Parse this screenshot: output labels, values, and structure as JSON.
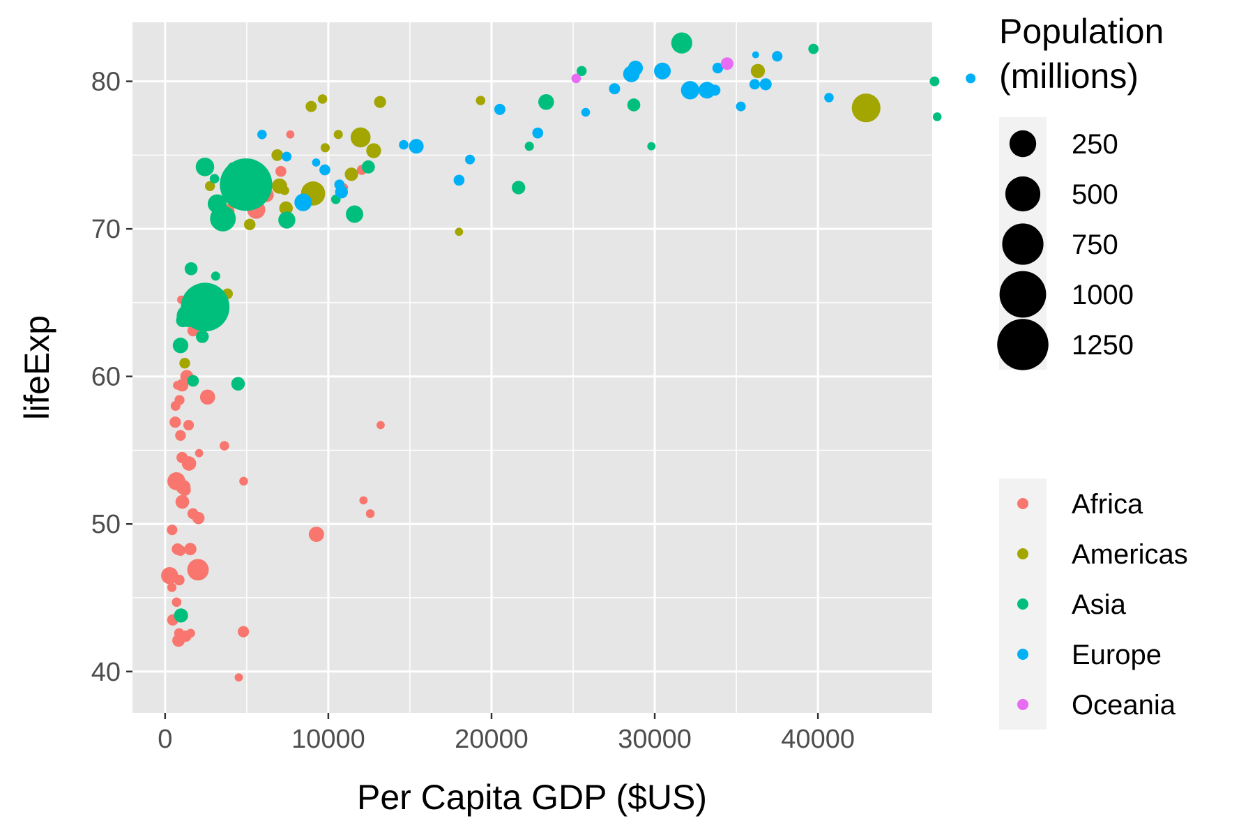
{
  "chart_data": {
    "type": "scatter",
    "xlabel": "Per Capita GDP ($US)",
    "ylabel": "lifeExp",
    "xlim": [
      -2000,
      47000
    ],
    "ylim": [
      37.2,
      84.0
    ],
    "x_ticks": [
      0,
      10000,
      20000,
      30000,
      40000
    ],
    "x_tick_labels": [
      "0",
      "10000",
      "20000",
      "30000",
      "40000"
    ],
    "y_ticks": [
      40,
      50,
      60,
      70,
      80
    ],
    "y_tick_labels": [
      "40",
      "50",
      "60",
      "70",
      "80"
    ],
    "grid": true,
    "panel_background": "#e6e6e6",
    "size_legend": {
      "title_lines": [
        "Population",
        "(millions)"
      ],
      "entries": [
        {
          "label": "250",
          "value": 250
        },
        {
          "label": "500",
          "value": 500
        },
        {
          "label": "750",
          "value": 750
        },
        {
          "label": "1000",
          "value": 1000
        },
        {
          "label": "1250",
          "value": 1250
        }
      ]
    },
    "color_legend": {
      "placement": "right",
      "entries": [
        {
          "label": "Africa",
          "color": "#F8766D"
        },
        {
          "label": "Americas",
          "color": "#A3A500"
        },
        {
          "label": "Asia",
          "color": "#00BF7D"
        },
        {
          "label": "Europe",
          "color": "#00B0F6"
        },
        {
          "label": "Oceania",
          "color": "#E76BF3"
        }
      ]
    },
    "series": [
      {
        "name": "Africa",
        "color": "#F8766D",
        "points": [
          {
            "x": 6223,
            "y": 72.3,
            "pop": 33
          },
          {
            "x": 4797,
            "y": 42.7,
            "pop": 12
          },
          {
            "x": 1441,
            "y": 56.7,
            "pop": 8
          },
          {
            "x": 12570,
            "y": 50.7,
            "pop": 2
          },
          {
            "x": 1217,
            "y": 52.3,
            "pop": 14
          },
          {
            "x": 430,
            "y": 49.6,
            "pop": 8
          },
          {
            "x": 2042,
            "y": 50.4,
            "pop": 18
          },
          {
            "x": 706,
            "y": 44.7,
            "pop": 4
          },
          {
            "x": 1704,
            "y": 50.7,
            "pop": 10
          },
          {
            "x": 986,
            "y": 65.2,
            "pop": 1
          },
          {
            "x": 278,
            "y": 46.5,
            "pop": 65
          },
          {
            "x": 3633,
            "y": 55.3,
            "pop": 4
          },
          {
            "x": 1545,
            "y": 48.3,
            "pop": 18
          },
          {
            "x": 2082,
            "y": 54.8,
            "pop": 1
          },
          {
            "x": 5581,
            "y": 71.3,
            "pop": 80
          },
          {
            "x": 12154,
            "y": 51.6,
            "pop": 1
          },
          {
            "x": 641,
            "y": 58.0,
            "pop": 5
          },
          {
            "x": 690,
            "y": 52.9,
            "pop": 77
          },
          {
            "x": 13206,
            "y": 56.7,
            "pop": 1
          },
          {
            "x": 752,
            "y": 59.4,
            "pop": 2
          },
          {
            "x": 1328,
            "y": 60.0,
            "pop": 23
          },
          {
            "x": 943,
            "y": 56.0,
            "pop": 9
          },
          {
            "x": 580,
            "y": 46.4,
            "pop": 1
          },
          {
            "x": 1463,
            "y": 54.1,
            "pop": 35
          },
          {
            "x": 1569,
            "y": 42.6,
            "pop": 2
          },
          {
            "x": 415,
            "y": 45.7,
            "pop": 3
          },
          {
            "x": 12057,
            "y": 74.0,
            "pop": 6
          },
          {
            "x": 1045,
            "y": 59.4,
            "pop": 19
          },
          {
            "x": 759,
            "y": 48.3,
            "pop": 13
          },
          {
            "x": 1042,
            "y": 54.5,
            "pop": 12
          },
          {
            "x": 1803,
            "y": 64.2,
            "pop": 3
          },
          {
            "x": 10957,
            "y": 72.8,
            "pop": 1
          },
          {
            "x": 3820,
            "y": 71.2,
            "pop": 33
          },
          {
            "x": 824,
            "y": 42.1,
            "pop": 20
          },
          {
            "x": 4811,
            "y": 52.9,
            "pop": 2
          },
          {
            "x": 620,
            "y": 56.9,
            "pop": 12
          },
          {
            "x": 2014,
            "y": 46.9,
            "pop": 135
          },
          {
            "x": 7670,
            "y": 76.4,
            "pop": 1
          },
          {
            "x": 863,
            "y": 46.2,
            "pop": 9
          },
          {
            "x": 1598,
            "y": 65.5,
            "pop": 0
          },
          {
            "x": 1712,
            "y": 63.1,
            "pop": 12
          },
          {
            "x": 862,
            "y": 42.6,
            "pop": 6
          },
          {
            "x": 926,
            "y": 48.2,
            "pop": 9
          },
          {
            "x": 9270,
            "y": 49.3,
            "pop": 44
          },
          {
            "x": 2602,
            "y": 58.6,
            "pop": 42
          },
          {
            "x": 4513,
            "y": 39.6,
            "pop": 1
          },
          {
            "x": 1107,
            "y": 52.5,
            "pop": 38
          },
          {
            "x": 883,
            "y": 58.4,
            "pop": 6
          },
          {
            "x": 7093,
            "y": 73.9,
            "pop": 10
          },
          {
            "x": 1056,
            "y": 51.5,
            "pop": 29
          },
          {
            "x": 1271,
            "y": 42.4,
            "pop": 12
          },
          {
            "x": 470,
            "y": 43.5,
            "pop": 12
          }
        ]
      },
      {
        "name": "Americas",
        "color": "#A3A500",
        "points": [
          {
            "x": 12779,
            "y": 75.3,
            "pop": 40
          },
          {
            "x": 3822,
            "y": 65.6,
            "pop": 9
          },
          {
            "x": 9066,
            "y": 72.4,
            "pop": 190
          },
          {
            "x": 36319,
            "y": 80.7,
            "pop": 33
          },
          {
            "x": 13172,
            "y": 78.6,
            "pop": 16
          },
          {
            "x": 7007,
            "y": 72.9,
            "pop": 44
          },
          {
            "x": 9645,
            "y": 78.8,
            "pop": 4
          },
          {
            "x": 8948,
            "y": 78.3,
            "pop": 11
          },
          {
            "x": 6025,
            "y": 72.2,
            "pop": 9
          },
          {
            "x": 6873,
            "y": 75.0,
            "pop": 14
          },
          {
            "x": 5728,
            "y": 71.9,
            "pop": 7
          },
          {
            "x": 5186,
            "y": 70.3,
            "pop": 13
          },
          {
            "x": 1202,
            "y": 60.9,
            "pop": 9
          },
          {
            "x": 3548,
            "y": 70.2,
            "pop": 7
          },
          {
            "x": 7321,
            "y": 72.6,
            "pop": 3
          },
          {
            "x": 11978,
            "y": 76.2,
            "pop": 108
          },
          {
            "x": 2749,
            "y": 72.9,
            "pop": 6
          },
          {
            "x": 9809,
            "y": 75.5,
            "pop": 3
          },
          {
            "x": 4173,
            "y": 71.8,
            "pop": 7
          },
          {
            "x": 7409,
            "y": 71.4,
            "pop": 28
          },
          {
            "x": 19329,
            "y": 78.7,
            "pop": 4
          },
          {
            "x": 18009,
            "y": 69.8,
            "pop": 1
          },
          {
            "x": 42952,
            "y": 78.2,
            "pop": 301
          },
          {
            "x": 10611,
            "y": 76.4,
            "pop": 3
          },
          {
            "x": 11416,
            "y": 73.7,
            "pop": 26
          }
        ]
      },
      {
        "name": "Asia",
        "color": "#00BF7D",
        "points": [
          {
            "x": 975,
            "y": 43.8,
            "pop": 32
          },
          {
            "x": 29796,
            "y": 75.6,
            "pop": 1
          },
          {
            "x": 1391,
            "y": 64.1,
            "pop": 150
          },
          {
            "x": 1714,
            "y": 59.7,
            "pop": 14
          },
          {
            "x": 4959,
            "y": 73.0,
            "pop": 1319
          },
          {
            "x": 39725,
            "y": 82.2,
            "pop": 7
          },
          {
            "x": 2452,
            "y": 64.7,
            "pop": 1110
          },
          {
            "x": 3541,
            "y": 70.7,
            "pop": 224
          },
          {
            "x": 11606,
            "y": 71.0,
            "pop": 69
          },
          {
            "x": 4471,
            "y": 59.5,
            "pop": 28
          },
          {
            "x": 25523,
            "y": 80.7,
            "pop": 6
          },
          {
            "x": 31656,
            "y": 82.6,
            "pop": 127
          },
          {
            "x": 4519,
            "y": 72.5,
            "pop": 6
          },
          {
            "x": 1593,
            "y": 67.3,
            "pop": 23
          },
          {
            "x": 23348,
            "y": 78.6,
            "pop": 49
          },
          {
            "x": 47307,
            "y": 77.6,
            "pop": 2
          },
          {
            "x": 10461,
            "y": 72.0,
            "pop": 4
          },
          {
            "x": 12452,
            "y": 74.2,
            "pop": 24
          },
          {
            "x": 3096,
            "y": 66.8,
            "pop": 3
          },
          {
            "x": 944,
            "y": 62.1,
            "pop": 47
          },
          {
            "x": 1091,
            "y": 63.8,
            "pop": 29
          },
          {
            "x": 22316,
            "y": 75.6,
            "pop": 3
          },
          {
            "x": 2606,
            "y": 65.5,
            "pop": 169
          },
          {
            "x": 3190,
            "y": 71.7,
            "pop": 91
          },
          {
            "x": 21655,
            "y": 72.8,
            "pop": 27
          },
          {
            "x": 47143,
            "y": 80.0,
            "pop": 5
          },
          {
            "x": 3970,
            "y": 72.4,
            "pop": 20
          },
          {
            "x": 4185,
            "y": 74.1,
            "pop": 19
          },
          {
            "x": 28718,
            "y": 78.4,
            "pop": 23
          },
          {
            "x": 7458,
            "y": 70.6,
            "pop": 65
          },
          {
            "x": 2442,
            "y": 74.2,
            "pop": 85
          },
          {
            "x": 3026,
            "y": 73.4,
            "pop": 4
          },
          {
            "x": 2281,
            "y": 62.7,
            "pop": 22
          }
        ]
      },
      {
        "name": "Europe",
        "color": "#00B0F6",
        "points": [
          {
            "x": 5937,
            "y": 76.4,
            "pop": 4
          },
          {
            "x": 36126,
            "y": 79.8,
            "pop": 8
          },
          {
            "x": 33693,
            "y": 79.4,
            "pop": 10
          },
          {
            "x": 7446,
            "y": 74.9,
            "pop": 5
          },
          {
            "x": 10681,
            "y": 73.0,
            "pop": 7
          },
          {
            "x": 14619,
            "y": 75.7,
            "pop": 4
          },
          {
            "x": 22833,
            "y": 76.5,
            "pop": 10
          },
          {
            "x": 35278,
            "y": 78.3,
            "pop": 5
          },
          {
            "x": 33207,
            "y": 79.3,
            "pop": 5
          },
          {
            "x": 30470,
            "y": 80.7,
            "pop": 61
          },
          {
            "x": 32170,
            "y": 79.4,
            "pop": 82
          },
          {
            "x": 27538,
            "y": 79.5,
            "pop": 11
          },
          {
            "x": 18009,
            "y": 73.3,
            "pop": 10
          },
          {
            "x": 36181,
            "y": 81.8,
            "pop": 0
          },
          {
            "x": 40676,
            "y": 78.9,
            "pop": 4
          },
          {
            "x": 28570,
            "y": 80.5,
            "pop": 58
          },
          {
            "x": 9254,
            "y": 74.5,
            "pop": 1
          },
          {
            "x": 36798,
            "y": 79.8,
            "pop": 16
          },
          {
            "x": 49357,
            "y": 80.2,
            "pop": 5
          },
          {
            "x": 15390,
            "y": 75.6,
            "pop": 38
          },
          {
            "x": 20510,
            "y": 78.1,
            "pop": 11
          },
          {
            "x": 10808,
            "y": 72.5,
            "pop": 22
          },
          {
            "x": 9787,
            "y": 74.0,
            "pop": 10
          },
          {
            "x": 18678,
            "y": 74.7,
            "pop": 5
          },
          {
            "x": 25768,
            "y": 77.9,
            "pop": 2
          },
          {
            "x": 28821,
            "y": 80.9,
            "pop": 40
          },
          {
            "x": 33860,
            "y": 80.9,
            "pop": 9
          },
          {
            "x": 37506,
            "y": 81.7,
            "pop": 8
          },
          {
            "x": 8458,
            "y": 71.8,
            "pop": 71
          },
          {
            "x": 33203,
            "y": 79.4,
            "pop": 61
          }
        ]
      },
      {
        "name": "Oceania",
        "color": "#E76BF3",
        "points": [
          {
            "x": 34435,
            "y": 81.2,
            "pop": 20
          },
          {
            "x": 25185,
            "y": 80.2,
            "pop": 4
          }
        ]
      }
    ]
  }
}
